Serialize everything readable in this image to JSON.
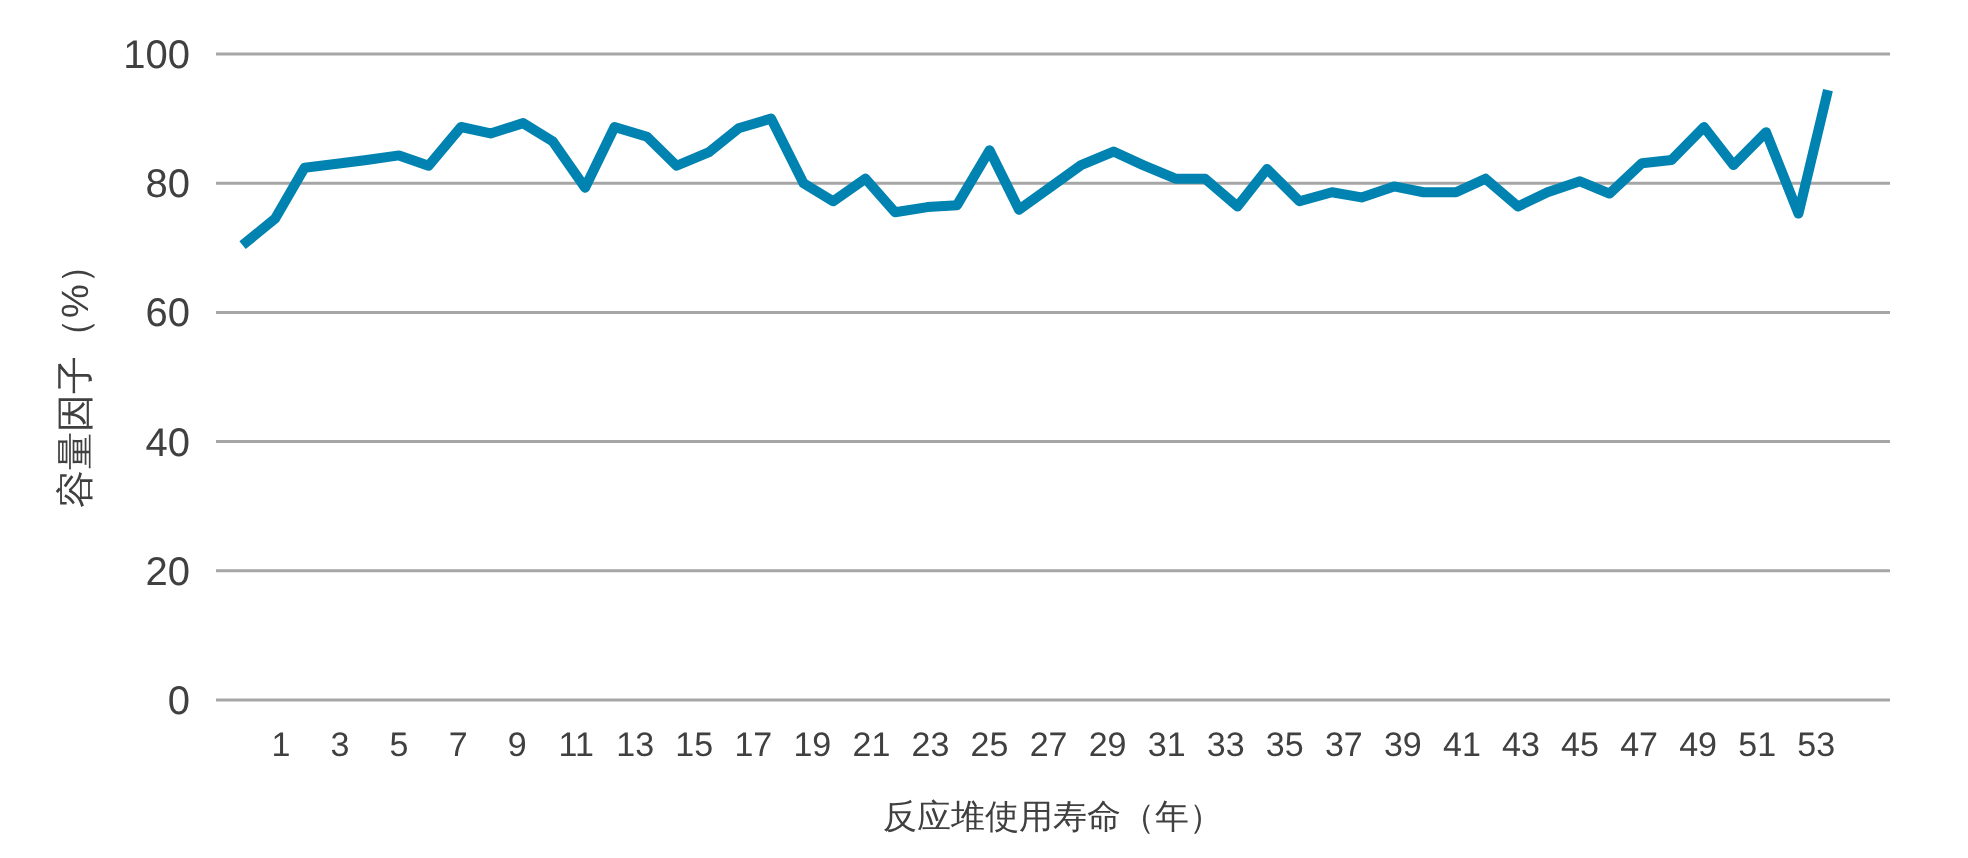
{
  "chart_data": {
    "type": "line",
    "xlabel": "反应堆使用寿命（年）",
    "ylabel": "容量因子（%）",
    "xlim": [
      -1.2,
      55.5
    ],
    "xticks": [
      1,
      3,
      5,
      7,
      9,
      11,
      13,
      15,
      17,
      19,
      21,
      23,
      25,
      27,
      29,
      31,
      33,
      35,
      37,
      39,
      41,
      43,
      45,
      47,
      49,
      51,
      53
    ],
    "ylim": [
      0,
      100
    ],
    "yticks": [
      0,
      20,
      40,
      60,
      80,
      100
    ],
    "grid": "y",
    "line_style": "solid",
    "x": [
      -0.3,
      0.8,
      1.8,
      2.9,
      3.9,
      5.0,
      6.0,
      7.1,
      8.1,
      9.2,
      10.2,
      11.3,
      12.3,
      13.4,
      14.4,
      15.5,
      16.5,
      17.6,
      18.7,
      19.7,
      20.8,
      21.8,
      22.9,
      23.9,
      25.0,
      26.0,
      27.1,
      28.1,
      29.2,
      30.2,
      31.3,
      32.3,
      33.4,
      34.4,
      35.5,
      36.6,
      37.6,
      38.7,
      39.7,
      40.8,
      41.8,
      42.9,
      43.9,
      45.0,
      46.0,
      47.1,
      48.1,
      49.2,
      50.2,
      51.3,
      52.4,
      53.4
    ],
    "series": [
      {
        "color": "#0083b0",
        "values": [
          70.4,
          74.5,
          82.4,
          83.0,
          83.6,
          84.3,
          82.7,
          88.7,
          87.7,
          89.3,
          86.5,
          79.3,
          88.7,
          87.2,
          82.7,
          84.8,
          88.5,
          90.0,
          80.0,
          77.2,
          80.7,
          75.5,
          76.3,
          76.6,
          85.1,
          75.9,
          79.5,
          82.8,
          84.9,
          82.8,
          80.7,
          80.7,
          76.4,
          82.2,
          77.2,
          78.6,
          77.8,
          79.5,
          78.6,
          78.6,
          80.7,
          76.4,
          78.6,
          80.3,
          78.4,
          83.1,
          83.6,
          88.7,
          82.8,
          87.9,
          75.3,
          94.4
        ]
      }
    ]
  }
}
